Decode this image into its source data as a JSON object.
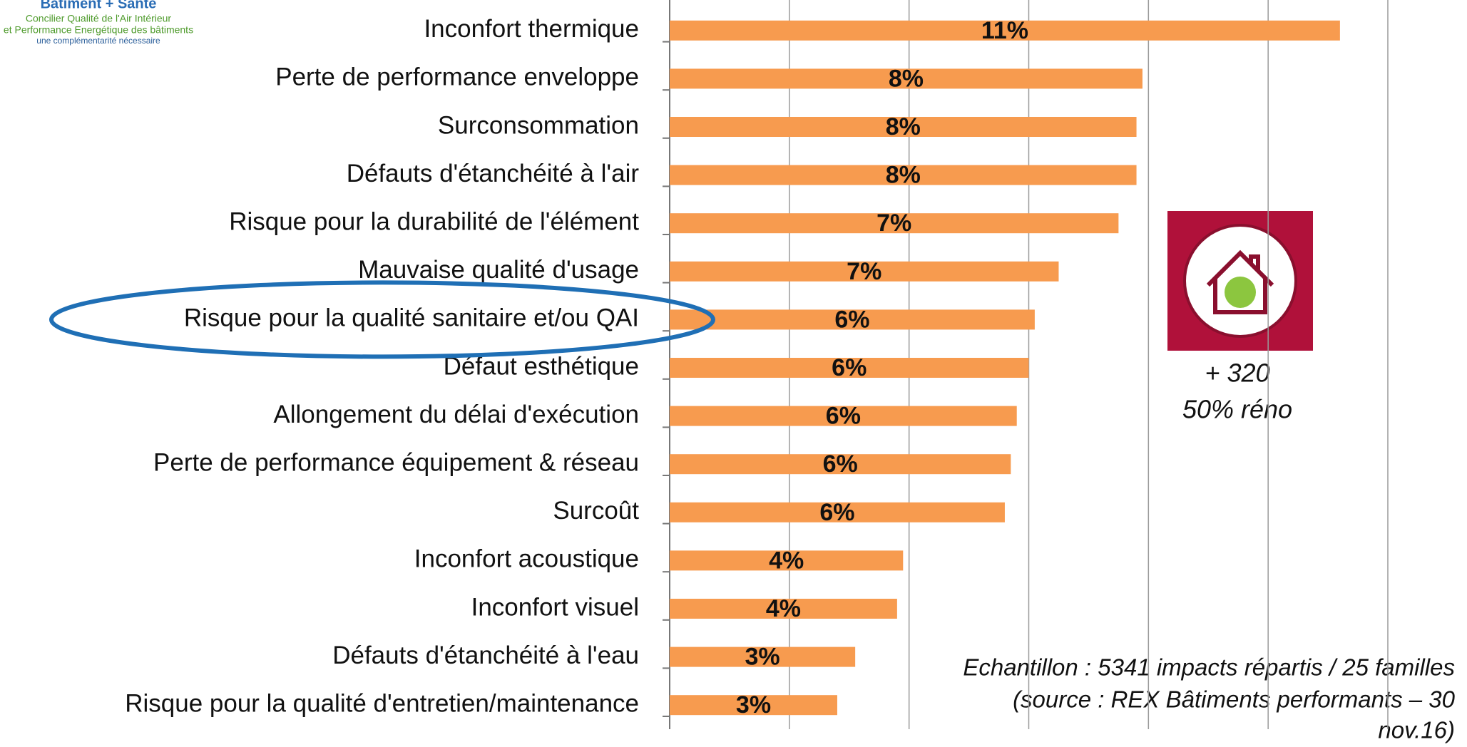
{
  "logo": {
    "title": "Bâtiment + Santé",
    "lines": [
      "Concilier Qualité de l'Air Intérieur",
      "et Performance Energétique des bâtiments",
      "une complémentarité nécessaire"
    ]
  },
  "chart_data": {
    "type": "hbar",
    "categories": [
      "Inconfort thermique",
      "Perte de performance enveloppe",
      "Surconsommation",
      "Défauts d'étanchéité à l'air",
      "Risque pour la durabilité de l'élément",
      "Mauvaise qualité d'usage",
      "Risque pour la qualité sanitaire et/ou QAI",
      "Défaut esthétique",
      "Allongement du délai d'exécution",
      "Perte de performance équipement & réseau",
      "Surcoût",
      "Inconfort acoustique",
      "Inconfort visuel",
      "Défauts d'étanchéité à l'eau",
      "Risque pour la qualité d'entretien/maintenance"
    ],
    "values": [
      11.2,
      7.9,
      7.8,
      7.8,
      7.5,
      6.5,
      6.1,
      6.0,
      5.8,
      5.7,
      5.6,
      3.9,
      3.8,
      3.1,
      2.8
    ],
    "value_labels": [
      "11%",
      "8%",
      "8%",
      "8%",
      "7%",
      "7%",
      "6%",
      "6%",
      "6%",
      "6%",
      "6%",
      "4%",
      "4%",
      "3%",
      "3%"
    ],
    "color": "#f79b4f",
    "xlim": [
      0,
      12
    ],
    "xticks": [
      0,
      2,
      4,
      6,
      8,
      10,
      12
    ],
    "grid": true,
    "highlight_category": 6,
    "icon_texts": [
      "+ 320",
      "50% réno"
    ],
    "note": [
      "Echantillon : 5341 impacts répartis / 25 familles",
      "(source : REX Bâtiments performants – 30",
      "nov.16)"
    ]
  }
}
